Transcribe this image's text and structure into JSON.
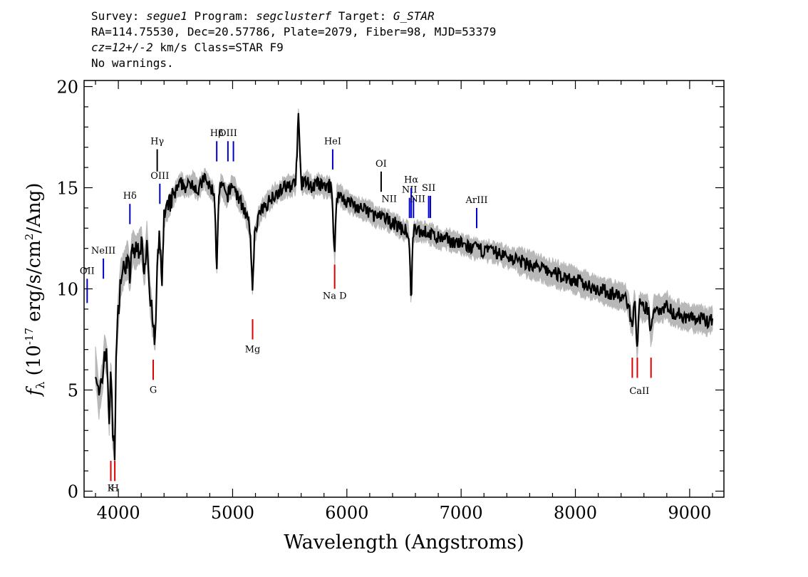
{
  "header": {
    "line1": {
      "survey_label": "Survey: ",
      "survey": "segue1",
      "program_label": " Program: ",
      "program": "segclusterf",
      "target_label": " Target: ",
      "target": "G_STAR"
    },
    "line2": "RA=114.75530, Dec=20.57786, Plate=2079, Fiber=98, MJD=53379",
    "line3": {
      "cz": "cz=12+/-2",
      "rest": " km/s Class=STAR F9"
    },
    "line4": "No warnings."
  },
  "colors": {
    "spectrum": "#000000",
    "error_band": "#b8b8b8",
    "emission_line": "#0000cc",
    "absorption_line": "#dd0000",
    "sky_line": "#000000"
  },
  "chart_data": {
    "type": "line",
    "xlabel": "Wavelength (Angstroms)",
    "ylabel": "f_λ (10^-17 erg/s/cm^2/Ang)",
    "ylabel_parts": {
      "f": "f",
      "sub": "λ",
      "pre": " (10",
      "exp": "-17",
      "mid": " erg/s/cm",
      "exp2": "2",
      "post": "/Ang)"
    },
    "xlim": [
      3700,
      9300
    ],
    "ylim": [
      -0.3,
      20.3
    ],
    "xticks": [
      4000,
      5000,
      6000,
      7000,
      8000,
      9000
    ],
    "yticks": [
      0,
      5,
      10,
      15,
      20
    ],
    "grid": false,
    "series": [
      {
        "x": [
          3800,
          3830,
          3860,
          3880,
          3900,
          3920,
          3935,
          3950,
          3968,
          3980,
          4000,
          4020,
          4050,
          4080,
          4101,
          4120,
          4150,
          4200,
          4230,
          4250,
          4280,
          4300,
          4320,
          4340,
          4360,
          4383,
          4400,
          4450,
          4500,
          4550,
          4600,
          4650,
          4700,
          4750,
          4800,
          4840,
          4861,
          4880,
          4900,
          4950,
          5000,
          5050,
          5100,
          5150,
          5175,
          5190,
          5220,
          5250,
          5300,
          5350,
          5400,
          5450,
          5500,
          5550,
          5577,
          5600,
          5650,
          5700,
          5750,
          5800,
          5850,
          5870,
          5893,
          5910,
          5950,
          6000,
          6050,
          6100,
          6150,
          6200,
          6250,
          6300,
          6350,
          6400,
          6450,
          6500,
          6540,
          6563,
          6580,
          6620,
          6700,
          6800,
          6900,
          7000,
          7100,
          7200,
          7300,
          7400,
          7500,
          7600,
          7700,
          7800,
          7900,
          8000,
          8100,
          8200,
          8300,
          8400,
          8450,
          8498,
          8520,
          8542,
          8560,
          8600,
          8640,
          8662,
          8690,
          8750,
          8800,
          8850,
          8900,
          8950,
          9000,
          9050,
          9100,
          9150,
          9200
        ],
        "y": [
          6.2,
          4.5,
          5.5,
          7.0,
          6.5,
          3.5,
          6.0,
          3.0,
          2.0,
          6.5,
          9.0,
          10.5,
          11.0,
          11.5,
          10.5,
          12.0,
          11.8,
          12.2,
          11.0,
          12.5,
          9.5,
          8.5,
          7.0,
          11.0,
          12.5,
          10.5,
          13.5,
          14.2,
          14.8,
          15.2,
          15.0,
          15.3,
          14.8,
          15.5,
          15.0,
          14.8,
          11.0,
          14.5,
          15.2,
          14.5,
          15.2,
          14.5,
          14.0,
          13.0,
          10.0,
          12.5,
          13.5,
          13.8,
          14.2,
          14.6,
          14.8,
          15.0,
          15.1,
          15.2,
          18.5,
          15.2,
          15.3,
          15.0,
          15.2,
          15.0,
          15.1,
          14.8,
          11.5,
          14.6,
          14.6,
          14.3,
          14.2,
          14.0,
          13.9,
          13.8,
          13.6,
          13.5,
          13.4,
          13.3,
          13.1,
          12.9,
          12.8,
          9.5,
          12.8,
          12.9,
          12.8,
          12.5,
          12.4,
          12.2,
          12.0,
          11.9,
          11.8,
          11.6,
          11.4,
          11.2,
          11.0,
          10.8,
          10.6,
          10.4,
          10.2,
          10.0,
          9.8,
          9.6,
          9.5,
          8.2,
          9.4,
          7.0,
          9.2,
          9.0,
          9.0,
          7.7,
          9.1,
          9.0,
          9.2,
          8.8,
          8.8,
          8.6,
          8.6,
          8.5,
          8.5,
          8.4,
          8.5
        ],
        "noise": 0.35
      }
    ],
    "line_markers": [
      {
        "label": "OII",
        "x": 3727,
        "y": [
          9.3,
          10.5
        ],
        "kind": "emission",
        "label_pos": "top"
      },
      {
        "label": "NeIII",
        "x": 3869,
        "y": [
          10.5,
          11.5
        ],
        "kind": "emission",
        "label_pos": "top"
      },
      {
        "label": "Hδ",
        "x": 4101,
        "y": [
          13.2,
          14.2
        ],
        "kind": "emission",
        "label_pos": "top"
      },
      {
        "label": "Hγ",
        "x": 4340,
        "y": [
          15.8,
          16.9
        ],
        "kind": "sky",
        "label_pos": "top"
      },
      {
        "label": "OIII",
        "x": 4363,
        "y": [
          14.2,
          15.2
        ],
        "kind": "emission",
        "label_pos": "top"
      },
      {
        "label": "Hβ",
        "x": 4861,
        "y": [
          16.3,
          17.3
        ],
        "kind": "emission",
        "label_pos": "top"
      },
      {
        "label": "OIII",
        "x": 4959,
        "y": [
          16.3,
          17.3
        ],
        "kind": "emission",
        "label_pos": "top"
      },
      {
        "label": "",
        "x": 5007,
        "y": [
          16.3,
          17.3
        ],
        "kind": "emission",
        "label_pos": "top"
      },
      {
        "label": "HeI",
        "x": 5876,
        "y": [
          15.9,
          16.9
        ],
        "kind": "emission",
        "label_pos": "top"
      },
      {
        "label": "OI",
        "x": 6300,
        "y": [
          14.8,
          15.8
        ],
        "kind": "sky",
        "label_pos": "top"
      },
      {
        "label": "NII",
        "x": 6548,
        "y": [
          13.5,
          14.5
        ],
        "kind": "emission",
        "label_pos": "top"
      },
      {
        "label": "Hα",
        "x": 6563,
        "y": [
          13.5,
          15.0
        ],
        "kind": "emission",
        "label_pos": "top"
      },
      {
        "label": "",
        "x": 6583,
        "y": [
          13.5,
          14.5
        ],
        "kind": "emission",
        "label_pos": "top"
      },
      {
        "label": "SII",
        "x": 6716,
        "y": [
          13.5,
          14.6
        ],
        "kind": "emission",
        "label_pos": "top"
      },
      {
        "label": "",
        "x": 6731,
        "y": [
          13.5,
          14.6
        ],
        "kind": "emission",
        "label_pos": "top"
      },
      {
        "label": "ArIII",
        "x": 7136,
        "y": [
          13.0,
          14.0
        ],
        "kind": "emission",
        "label_pos": "top"
      },
      {
        "label": "",
        "x": 3934,
        "y": [
          0.5,
          1.5
        ],
        "kind": "absorption",
        "label_pos": "none"
      },
      {
        "label": "",
        "x": 3969,
        "y": [
          0.5,
          1.5
        ],
        "kind": "absorption",
        "label_pos": "none"
      },
      {
        "label": "G",
        "x": 4305,
        "y": [
          5.5,
          6.5
        ],
        "kind": "absorption",
        "label_pos": "bottom"
      },
      {
        "label": "Mg",
        "x": 5175,
        "y": [
          7.5,
          8.5
        ],
        "kind": "absorption",
        "label_pos": "bottom"
      },
      {
        "label": "",
        "x": 5893,
        "y": [
          10.0,
          11.2
        ],
        "kind": "absorption",
        "label_pos": "none"
      },
      {
        "label": "",
        "x": 8498,
        "y": [
          5.6,
          6.6
        ],
        "kind": "absorption",
        "label_pos": "none"
      },
      {
        "label": "",
        "x": 8542,
        "y": [
          5.6,
          6.6
        ],
        "kind": "absorption",
        "label_pos": "none"
      },
      {
        "label": "",
        "x": 8662,
        "y": [
          5.6,
          6.6
        ],
        "kind": "absorption",
        "label_pos": "none"
      }
    ],
    "annotations": [
      {
        "text": "K",
        "x": 3934,
        "y": 0
      },
      {
        "text": "H",
        "x": 3969,
        "y": 0
      },
      {
        "text": "Na D",
        "x": 5893,
        "y": 9.5
      },
      {
        "text": "NII",
        "x": 6370,
        "y": 14.3
      },
      {
        "text": "NII",
        "x": 6620,
        "y": 14.3
      },
      {
        "text": "CaII",
        "x": 8560,
        "y": 4.8
      }
    ]
  }
}
